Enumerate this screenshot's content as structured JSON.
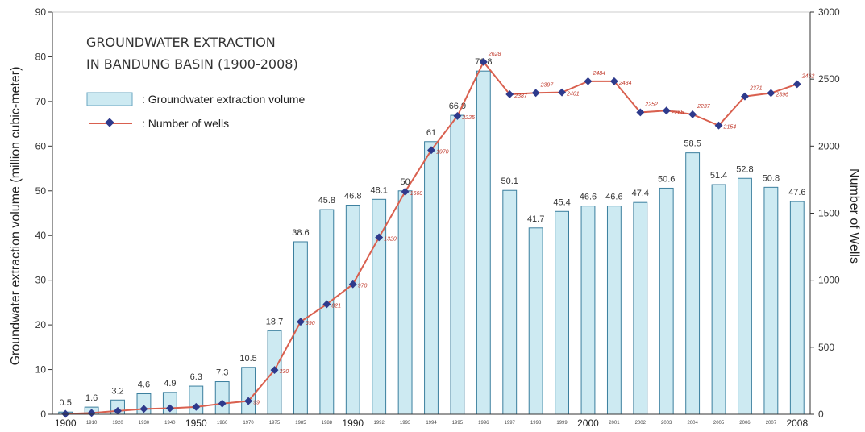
{
  "chart_data": {
    "type": "bar",
    "title_lines": [
      "GROUNDWATER EXTRACTION",
      "IN BANDUNG BASIN (1900-2008)"
    ],
    "categories": [
      "1900",
      "1910",
      "1920",
      "1930",
      "1940",
      "1950",
      "1960",
      "1970",
      "1975",
      "1985",
      "1988",
      "1990",
      "1992",
      "1993",
      "1994",
      "1995",
      "1996",
      "1997",
      "1998",
      "1999",
      "2000",
      "2001",
      "2002",
      "2003",
      "2004",
      "2005",
      "2006",
      "2007",
      "2008"
    ],
    "category_labels": [
      "1900",
      "1910",
      "1920",
      "1930",
      "1940",
      "1950",
      "1960",
      "1970",
      "1975",
      "1985",
      "1988",
      "1990",
      "1992",
      "1993",
      "1994",
      "1995",
      "1996",
      "1997",
      "1998",
      "1999",
      "2000",
      "2001",
      "2002",
      "2003",
      "2004",
      "2005",
      "2006",
      "2007",
      "2008"
    ],
    "big_category_labels": [
      "1900",
      "1950",
      "1990",
      "2000",
      "2008"
    ],
    "series": [
      {
        "name": ": Groundwater extraction volume",
        "kind": "bar",
        "axis": "left",
        "color": "#cdeaf2",
        "values": [
          0.5,
          1.6,
          3.2,
          4.6,
          4.9,
          6.3,
          7.3,
          10.5,
          18.7,
          38.6,
          45.8,
          46.8,
          48.1,
          50,
          61,
          66.9,
          76.8,
          50.1,
          41.7,
          45.4,
          46.6,
          46.6,
          47.4,
          50.6,
          58.5,
          51.4,
          52.8,
          50.8,
          47.6
        ],
        "labels": [
          "0.5",
          "1.6",
          "3.2",
          "4.6",
          "4.9",
          "6.3",
          "7.3",
          "10.5",
          "18.7",
          "38.6",
          "45.8",
          "46.8",
          "48.1",
          "50",
          "61",
          "66.9",
          "76.8",
          "50.1",
          "41.7",
          "45.4",
          "46.6",
          "46.6",
          "47.4",
          "50.6",
          "58.5",
          "51.4",
          "52.8",
          "50.8",
          "47.6"
        ]
      },
      {
        "name": ": Number of wells",
        "kind": "line",
        "axis": "right",
        "color": "#d9604f",
        "marker_color": "#2e3a8c",
        "values": [
          3,
          10,
          25,
          40,
          45,
          55,
          80,
          99,
          330,
          690,
          821,
          970,
          1320,
          1660,
          1970,
          2225,
          2628,
          2387,
          2397,
          2401,
          2484,
          2484,
          2252,
          2265,
          2237,
          2154,
          2371,
          2396,
          2462
        ],
        "labels": [
          "",
          "",
          "",
          "",
          "",
          "",
          "",
          "99",
          "330",
          "690",
          "821",
          "970",
          "1320",
          "1660",
          "1970",
          "2225",
          "2628",
          "2387",
          "2397",
          "2401",
          "2484",
          "2484",
          "2252",
          "2265",
          "2237",
          "2154",
          "2371",
          "2396",
          "2462"
        ]
      }
    ],
    "yleft": {
      "label": "Groundwater extraction volume (million cubic-meter)",
      "lim": [
        0,
        90
      ],
      "ticks": [
        0,
        10,
        20,
        30,
        40,
        50,
        60,
        70,
        80,
        90
      ]
    },
    "yright": {
      "label": "Number of Wells",
      "lim": [
        0,
        3000
      ],
      "ticks": [
        0,
        500,
        1000,
        1500,
        2000,
        2500,
        3000
      ]
    },
    "grid": false,
    "legend_position": "top-left"
  }
}
